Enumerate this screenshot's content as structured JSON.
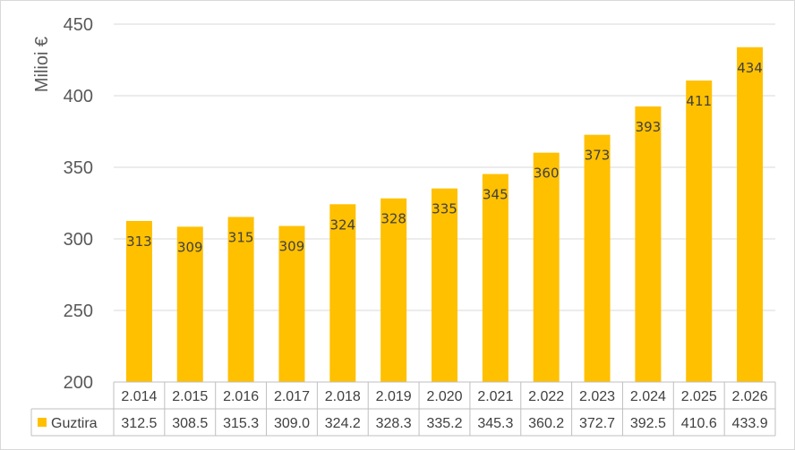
{
  "chart_data": {
    "type": "bar",
    "ylabel": "Milioi €",
    "ylim": [
      200,
      450
    ],
    "yticks": [
      200,
      250,
      300,
      350,
      400,
      450
    ],
    "grid": true,
    "categories": [
      "2.014",
      "2.015",
      "2.016",
      "2.017",
      "2.018",
      "2.019",
      "2.020",
      "2.021",
      "2.022",
      "2.023",
      "2.024",
      "2.025",
      "2.026"
    ],
    "series": [
      {
        "name": "Guztira",
        "values": [
          312.5,
          308.5,
          315.3,
          309.0,
          324.2,
          328.3,
          335.2,
          345.3,
          360.2,
          372.7,
          392.5,
          410.6,
          433.9
        ],
        "data_labels": [
          "313",
          "309",
          "315",
          "309",
          "324",
          "328",
          "335",
          "345",
          "360",
          "373",
          "393",
          "411",
          "434"
        ],
        "table_values": [
          "312.5",
          "308.5",
          "315.3",
          "309.0",
          "324.2",
          "328.3",
          "335.2",
          "345.3",
          "360.2",
          "372.7",
          "392.5",
          "410.6",
          "433.9"
        ],
        "color": "#FFC000"
      }
    ],
    "data_table": true,
    "colors": {
      "bar": "#FFC000",
      "gridline": "#d9d9d9",
      "table_border": "#bfbfbf",
      "text": "#404040",
      "axis_text": "#595959"
    }
  }
}
